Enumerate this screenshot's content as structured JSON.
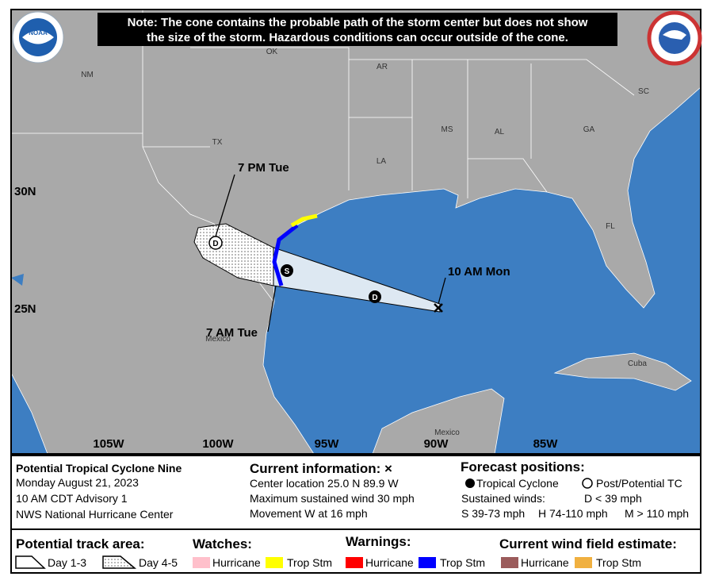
{
  "map": {
    "note": [
      "Note: The cone contains the probable path of the storm center but does not show",
      "the size of the storm. Hazardous conditions can occur outside of the cone."
    ],
    "logo": "NOAA",
    "places": [
      "NM",
      "OK",
      "AR",
      "TX",
      "LA",
      "MS",
      "AL",
      "GA",
      "SC",
      "FL",
      "Mexico",
      "Mexico",
      "Cuba"
    ],
    "latitudes": [
      "30N",
      "25N"
    ],
    "longitudes": [
      "105W",
      "100W",
      "95W",
      "90W",
      "85W"
    ],
    "markers": [
      "D",
      "S",
      "D"
    ],
    "times": [
      "7 PM Tue",
      "10 AM Mon",
      "7 AM Tue"
    ]
  },
  "panel": {
    "storm": [
      "Potential Tropical Cyclone Nine",
      "Monday August 21, 2023",
      "10 AM CDT Advisory 1",
      "NWS National Hurricane Center"
    ],
    "current": {
      "title": "Current information: ×",
      "lines": [
        "Center location 25.0 N 89.9 W",
        "Maximum sustained wind 30 mph",
        "Movement W at 16 mph"
      ]
    },
    "forecast": {
      "title": "Forecast positions:",
      "tropical": "Tropical Cyclone",
      "post": "Post/Potential TC",
      "winds": "Sustained winds:",
      "d": "D < 39 mph",
      "s": "S 39-73 mph",
      "h": "H 74-110 mph",
      "m": "M > 110 mph"
    },
    "track": {
      "title": "Potential track area:",
      "day13": "Day 1-3",
      "day45": "Day 4-5"
    },
    "watches": {
      "title": "Watches:",
      "hurricane": "Hurricane",
      "tropical": "Trop Stm"
    },
    "warnings": {
      "title": "Warnings:",
      "hurricane": "Hurricane",
      "tropical": "Trop Stm"
    },
    "wind": {
      "title": "Current wind field estimate:",
      "hurricane": "Hurricane",
      "tropical": "Trop Stm"
    }
  }
}
